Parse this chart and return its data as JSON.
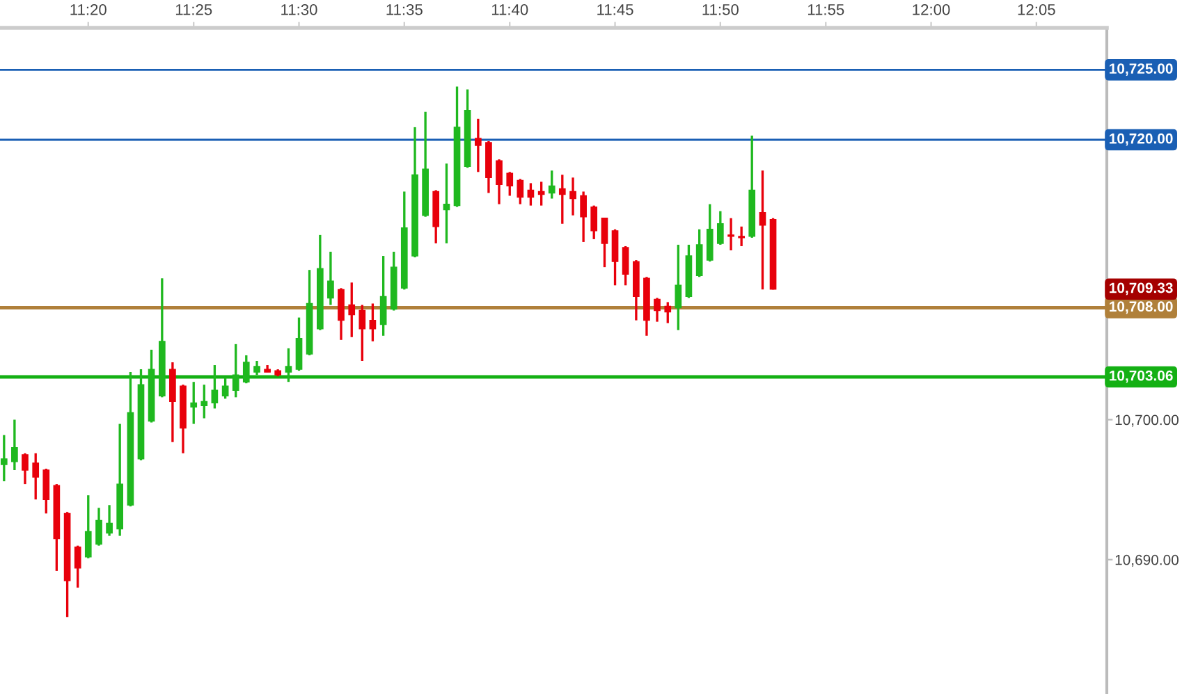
{
  "chart_data": {
    "type": "candlestick",
    "x": [
      11.2667,
      11.275,
      11.2833,
      11.2917,
      11.3,
      11.3083,
      11.3167,
      11.325,
      11.3333,
      11.3417,
      11.35,
      11.3583,
      11.3667,
      11.375,
      11.3833,
      11.3917,
      11.4,
      11.4083,
      11.4167,
      11.425,
      11.4333,
      11.4417,
      11.45,
      11.4583,
      11.4667,
      11.475,
      11.4833,
      11.4917,
      11.5,
      11.5083,
      11.5167,
      11.525,
      11.5333,
      11.5417,
      11.55,
      11.5583,
      11.5667,
      11.575,
      11.5833,
      11.5917,
      11.6,
      11.6083,
      11.6167,
      11.625,
      11.6333,
      11.6417,
      11.65,
      11.6583,
      11.6667,
      11.675,
      11.6833,
      11.6917,
      11.7,
      11.7083,
      11.7167,
      11.725,
      11.7333,
      11.7417,
      11.75,
      11.7583,
      11.7667,
      11.775,
      11.7833,
      11.7917,
      11.8,
      11.8083,
      11.8167,
      11.825,
      11.8333,
      11.8417,
      11.85,
      11.8583,
      11.8667,
      11.875
    ],
    "ohlc": [
      [
        10696.8,
        10698.9,
        10695.6,
        10697.2
      ],
      [
        10697.0,
        10700.0,
        10696.4,
        10698.0
      ],
      [
        10697.5,
        10697.6,
        10695.4,
        10696.4
      ],
      [
        10696.9,
        10697.6,
        10694.3,
        10695.9
      ],
      [
        10696.4,
        10696.5,
        10693.3,
        10694.3
      ],
      [
        10695.3,
        10695.4,
        10689.2,
        10691.5
      ],
      [
        10693.3,
        10693.4,
        10685.9,
        10688.5
      ],
      [
        10690.9,
        10691.0,
        10688.0,
        10689.4
      ],
      [
        10690.2,
        10694.6,
        10690.1,
        10692.0
      ],
      [
        10691.1,
        10693.7,
        10691.0,
        10692.8
      ],
      [
        10691.9,
        10693.9,
        10691.7,
        10692.6
      ],
      [
        10692.2,
        10699.7,
        10691.7,
        10695.4
      ],
      [
        10693.9,
        10703.4,
        10693.8,
        10700.5
      ],
      [
        10697.2,
        10703.6,
        10697.1,
        10702.5
      ],
      [
        10699.9,
        10705.0,
        10699.8,
        10703.6
      ],
      [
        10701.7,
        10710.1,
        10701.6,
        10705.6
      ],
      [
        10703.6,
        10704.1,
        10698.4,
        10701.3
      ],
      [
        10702.4,
        10702.5,
        10697.6,
        10699.4
      ],
      [
        10700.9,
        10702.7,
        10699.7,
        10701.2
      ],
      [
        10701.0,
        10702.5,
        10700.1,
        10701.3
      ],
      [
        10701.2,
        10703.9,
        10700.8,
        10702.1
      ],
      [
        10701.7,
        10703.0,
        10701.5,
        10702.4
      ],
      [
        10702.1,
        10705.4,
        10701.6,
        10703.2
      ],
      [
        10702.7,
        10704.6,
        10702.6,
        10704.1
      ],
      [
        10703.4,
        10704.2,
        10703.2,
        10703.8
      ],
      [
        10703.6,
        10703.9,
        10703.4,
        10703.4
      ],
      [
        10703.5,
        10703.6,
        10703.1,
        10703.2
      ],
      [
        10703.4,
        10705.1,
        10702.7,
        10703.8
      ],
      [
        10703.6,
        10707.3,
        10703.5,
        10705.8
      ],
      [
        10704.7,
        10710.7,
        10704.6,
        10708.3
      ],
      [
        10706.5,
        10713.2,
        10706.4,
        10710.8
      ],
      [
        10708.7,
        10712.0,
        10708.2,
        10709.9
      ],
      [
        10709.3,
        10709.4,
        10705.7,
        10707.1
      ],
      [
        10708.2,
        10709.8,
        10705.9,
        10707.5
      ],
      [
        10707.8,
        10708.2,
        10704.2,
        10706.5
      ],
      [
        10707.1,
        10708.3,
        10705.6,
        10706.5
      ],
      [
        10706.8,
        10711.7,
        10706.0,
        10708.8
      ],
      [
        10707.9,
        10712.0,
        10707.8,
        10710.9
      ],
      [
        10709.4,
        10716.3,
        10709.3,
        10713.7
      ],
      [
        10711.7,
        10720.9,
        10711.6,
        10717.5
      ],
      [
        10714.6,
        10722.0,
        10714.5,
        10717.9
      ],
      [
        10716.3,
        10716.4,
        10712.6,
        10713.8
      ],
      [
        10715.0,
        10718.3,
        10712.6,
        10715.4
      ],
      [
        10715.3,
        10723.8,
        10715.2,
        10720.9
      ],
      [
        10718.1,
        10723.6,
        10718.0,
        10722.1
      ],
      [
        10720.1,
        10721.5,
        10717.7,
        10719.6
      ],
      [
        10719.8,
        10719.9,
        10716.2,
        10717.3
      ],
      [
        10718.5,
        10718.6,
        10715.4,
        10716.8
      ],
      [
        10717.6,
        10717.7,
        10716.0,
        10716.7
      ],
      [
        10717.1,
        10717.2,
        10715.4,
        10715.9
      ],
      [
        10716.4,
        10716.9,
        10715.3,
        10715.9
      ],
      [
        10716.3,
        10717.0,
        10715.3,
        10716.1
      ],
      [
        10716.2,
        10717.8,
        10715.8,
        10716.7
      ],
      [
        10716.5,
        10717.5,
        10714.0,
        10716.1
      ],
      [
        10716.3,
        10717.3,
        10714.6,
        10715.8
      ],
      [
        10716.0,
        10716.3,
        10712.7,
        10714.5
      ],
      [
        10715.2,
        10715.3,
        10712.9,
        10713.5
      ],
      [
        10714.4,
        10714.4,
        10710.9,
        10712.6
      ],
      [
        10713.5,
        10713.6,
        10709.6,
        10711.3
      ],
      [
        10712.3,
        10712.4,
        10709.6,
        10710.4
      ],
      [
        10711.3,
        10711.4,
        10707.1,
        10708.8
      ],
      [
        10710.1,
        10710.2,
        10706.0,
        10707.1
      ],
      [
        10708.6,
        10708.7,
        10707.0,
        10707.8
      ],
      [
        10708.1,
        10708.4,
        10706.9,
        10707.7
      ],
      [
        10708.0,
        10712.5,
        10706.4,
        10709.6
      ],
      [
        10708.8,
        10712.5,
        10708.7,
        10711.7
      ],
      [
        10710.3,
        10713.6,
        10710.2,
        10712.5
      ],
      [
        10711.4,
        10715.4,
        10711.3,
        10713.6
      ],
      [
        10712.6,
        10714.9,
        10712.5,
        10714.0
      ],
      [
        10713.2,
        10714.4,
        10712.1,
        10713.1
      ],
      [
        10713.1,
        10713.8,
        10712.4,
        10713.0
      ],
      [
        10713.1,
        10720.3,
        10713.0,
        10716.4
      ],
      [
        10714.8,
        10717.8,
        10709.3,
        10713.9
      ],
      [
        10714.3,
        10714.4,
        10709.3,
        10709.33
      ]
    ],
    "colors": [
      "#1fb81f",
      "#1fb81f",
      "#e8000b",
      "#e8000b",
      "#e8000b",
      "#e8000b",
      "#e8000b",
      "#e8000b",
      "#1fb81f",
      "#1fb81f",
      "#1fb81f",
      "#1fb81f",
      "#1fb81f",
      "#1fb81f",
      "#1fb81f",
      "#1fb81f",
      "#e8000b",
      "#e8000b",
      "#1fb81f",
      "#1fb81f",
      "#1fb81f",
      "#1fb81f",
      "#1fb81f",
      "#1fb81f",
      "#1fb81f",
      "#e8000b",
      "#e8000b",
      "#1fb81f",
      "#1fb81f",
      "#1fb81f",
      "#1fb81f",
      "#1fb81f",
      "#e8000b",
      "#e8000b",
      "#e8000b",
      "#e8000b",
      "#1fb81f",
      "#1fb81f",
      "#1fb81f",
      "#1fb81f",
      "#1fb81f",
      "#e8000b",
      "#1fb81f",
      "#1fb81f",
      "#1fb81f",
      "#e8000b",
      "#e8000b",
      "#e8000b",
      "#e8000b",
      "#e8000b",
      "#e8000b",
      "#e8000b",
      "#1fb81f",
      "#e8000b",
      "#e8000b",
      "#e8000b",
      "#e8000b",
      "#e8000b",
      "#e8000b",
      "#e8000b",
      "#e8000b",
      "#e8000b",
      "#e8000b",
      "#e8000b",
      "#1fb81f",
      "#1fb81f",
      "#1fb81f",
      "#1fb81f",
      "#1fb81f",
      "#e8000b",
      "#e8000b",
      "#1fb81f",
      "#e8000b",
      "#e8000b"
    ],
    "xlim": [
      11.2635,
      12.139
    ],
    "xticks": [
      {
        "value": 11.3333,
        "label": "11:20"
      },
      {
        "value": 11.4167,
        "label": "11:25"
      },
      {
        "value": 11.5,
        "label": "11:30"
      },
      {
        "value": 11.5833,
        "label": "11:35"
      },
      {
        "value": 11.6667,
        "label": "11:40"
      },
      {
        "value": 11.75,
        "label": "11:45"
      },
      {
        "value": 11.8333,
        "label": "11:50"
      },
      {
        "value": 11.9167,
        "label": "11:55"
      },
      {
        "value": 12.0,
        "label": "12:00"
      },
      {
        "value": 12.0833,
        "label": "12:05"
      }
    ],
    "ylim": [
      10680.4,
      10728.0
    ],
    "yticks": [
      {
        "value": 10690,
        "label": "10,690.00"
      },
      {
        "value": 10700,
        "label": "10,700.00"
      },
      {
        "value": 10710,
        "label": null
      }
    ],
    "ref_lines": [
      {
        "axis": "y",
        "value": 10725,
        "label": "10,725.00",
        "color": "#1a5fb4"
      },
      {
        "axis": "y",
        "value": 10720,
        "label": "10,720.00",
        "color": "#1a5fb4"
      },
      {
        "axis": "y",
        "value": 10708,
        "label": "10,708.00",
        "color": "#b0803a"
      },
      {
        "axis": "y",
        "value": 10703.06,
        "label": "10,703.06",
        "color": "#14b014"
      }
    ],
    "annotations": [
      "10,709.33"
    ],
    "grid": false
  }
}
